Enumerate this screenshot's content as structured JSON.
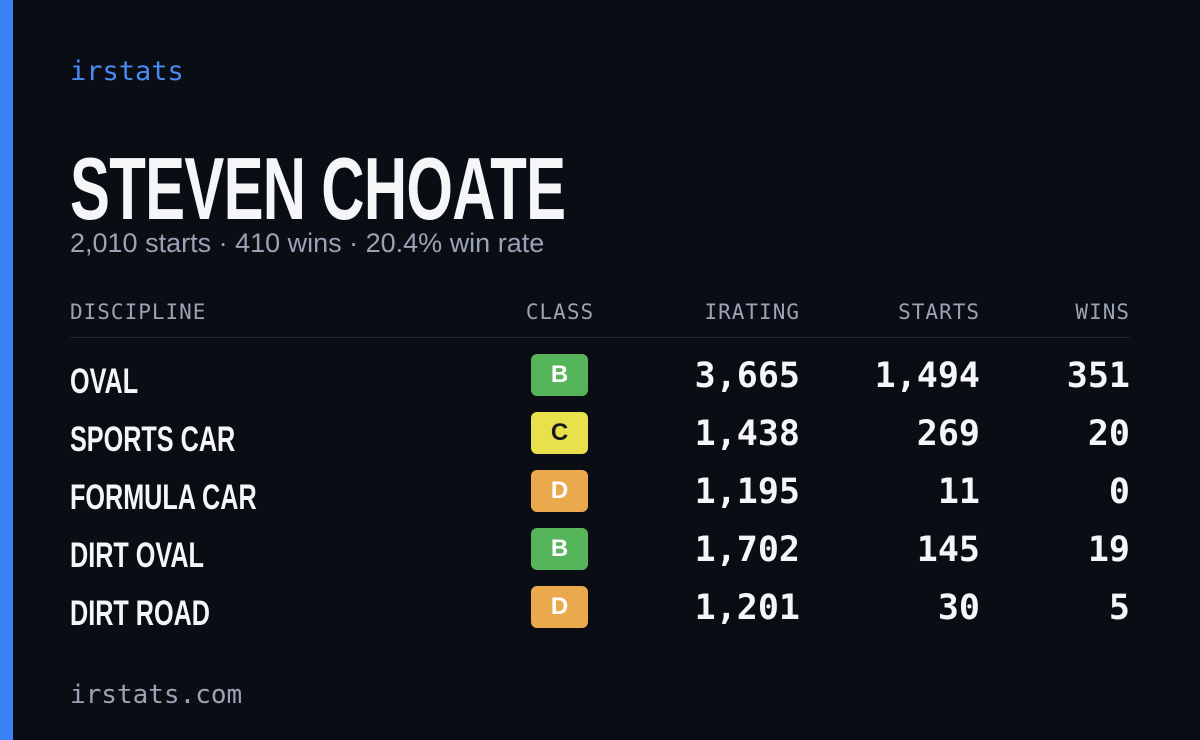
{
  "header": {
    "brand": "irstats",
    "title": "STEVEN CHOATE",
    "subtitle": "2,010 starts · 410 wins · 20.4% win rate"
  },
  "table": {
    "columns": [
      "DISCIPLINE",
      "CLASS",
      "IRATING",
      "STARTS",
      "WINS"
    ],
    "rows": [
      {
        "discipline": "OVAL",
        "class": "B",
        "class_color": "#56b55a",
        "irating": "3,665",
        "starts": "1,494",
        "wins": "351"
      },
      {
        "discipline": "SPORTS CAR",
        "class": "C",
        "class_color": "#e9e14b",
        "irating": "1,438",
        "starts": "269",
        "wins": "20"
      },
      {
        "discipline": "FORMULA CAR",
        "class": "D",
        "class_color": "#eaa94c",
        "irating": "1,195",
        "starts": "11",
        "wins": "0"
      },
      {
        "discipline": "DIRT OVAL",
        "class": "B",
        "class_color": "#56b55a",
        "irating": "1,702",
        "starts": "145",
        "wins": "19"
      },
      {
        "discipline": "DIRT ROAD",
        "class": "D",
        "class_color": "#eaa94c",
        "irating": "1,201",
        "starts": "30",
        "wins": "5"
      }
    ]
  },
  "footer": {
    "url": "irstats.com"
  }
}
